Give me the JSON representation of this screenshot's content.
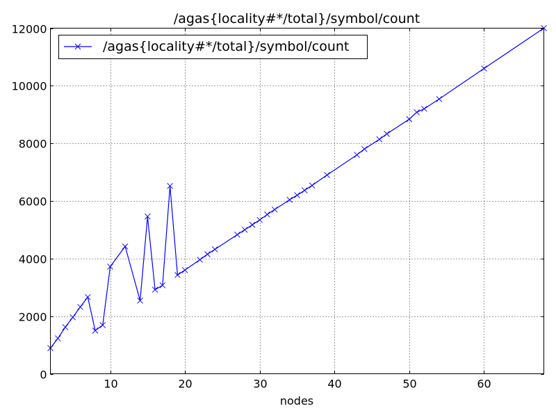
{
  "chart_data": {
    "type": "line",
    "title": "/agas{locality#*/total}/symbol/count",
    "xlabel": "nodes",
    "ylabel": "",
    "xlim": [
      2,
      68
    ],
    "ylim": [
      0,
      12000
    ],
    "xticks": [
      10,
      20,
      30,
      40,
      50,
      60
    ],
    "yticks": [
      0,
      2000,
      4000,
      6000,
      8000,
      10000,
      12000
    ],
    "grid": true,
    "legend_position": "top-left",
    "series": [
      {
        "name": "/agas{locality#*/total}/symbol/count",
        "color": "#0000ff",
        "marker": "x",
        "x": [
          2,
          3,
          4,
          5,
          6,
          7,
          8,
          9,
          10,
          12,
          14,
          15,
          16,
          17,
          18,
          19,
          20,
          22,
          23,
          24,
          27,
          28,
          29,
          30,
          31,
          32,
          34,
          35,
          36,
          37,
          39,
          43,
          44,
          46,
          47,
          50,
          51,
          52,
          54,
          60,
          68
        ],
        "y": [
          890,
          1230,
          1620,
          1960,
          2320,
          2660,
          1500,
          1690,
          3720,
          4420,
          2540,
          5460,
          2920,
          3070,
          6520,
          3430,
          3600,
          3960,
          4150,
          4320,
          4830,
          5000,
          5170,
          5340,
          5530,
          5700,
          6040,
          6200,
          6370,
          6540,
          6900,
          7600,
          7800,
          8140,
          8330,
          8840,
          9080,
          9200,
          9540,
          10600,
          12000
        ]
      }
    ]
  }
}
